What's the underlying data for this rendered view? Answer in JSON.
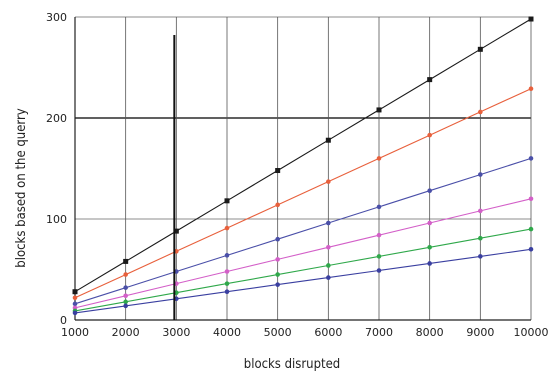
{
  "chart_data": {
    "type": "line",
    "title": "",
    "xlabel": "blocks disrupted",
    "ylabel": "blocks based on the querry",
    "xlim": [
      1000,
      10000
    ],
    "ylim": [
      0,
      300
    ],
    "x_ticks": [
      "1000",
      "2000",
      "3000",
      "4000",
      "5000",
      "6000",
      "7000",
      "8000",
      "9000",
      "10000"
    ],
    "y_ticks": [
      "0",
      "100",
      "200",
      "300"
    ],
    "grid": true,
    "legend": "none",
    "series": [
      {
        "color": "#1a1a1a",
        "marker": "square",
        "x": [
          1000,
          2000,
          3000,
          4000,
          5000,
          6000,
          7000,
          8000,
          9000,
          10000
        ],
        "values": [
          28,
          58,
          88,
          118,
          148,
          178,
          208,
          238,
          268,
          298
        ]
      },
      {
        "color": "#e8603c",
        "marker": "circle",
        "x": [
          1000,
          2000,
          3000,
          4000,
          5000,
          6000,
          7000,
          8000,
          9000,
          10000
        ],
        "values": [
          22,
          45,
          68,
          91,
          114,
          137,
          160,
          183,
          206,
          229
        ]
      },
      {
        "color": "#4a4fa8",
        "marker": "circle",
        "x": [
          1000,
          2000,
          3000,
          4000,
          5000,
          6000,
          7000,
          8000,
          9000,
          10000
        ],
        "values": [
          16,
          32,
          48,
          64,
          80,
          96,
          112,
          128,
          144,
          160
        ]
      },
      {
        "color": "#d35fc8",
        "marker": "circle",
        "x": [
          1000,
          2000,
          3000,
          4000,
          5000,
          6000,
          7000,
          8000,
          9000,
          10000
        ],
        "values": [
          12,
          24,
          36,
          48,
          60,
          72,
          84,
          96,
          108,
          120
        ]
      },
      {
        "color": "#2fa84a",
        "marker": "circle",
        "x": [
          1000,
          2000,
          3000,
          4000,
          5000,
          6000,
          7000,
          8000,
          9000,
          10000
        ],
        "values": [
          9,
          18,
          27,
          36,
          45,
          54,
          63,
          72,
          81,
          90
        ]
      },
      {
        "color": "#3a3fa0",
        "marker": "circle",
        "x": [
          1000,
          2000,
          3000,
          4000,
          5000,
          6000,
          7000,
          8000,
          9000,
          10000
        ],
        "values": [
          7,
          14,
          21,
          28,
          35,
          42,
          49,
          56,
          63,
          70
        ]
      }
    ]
  }
}
